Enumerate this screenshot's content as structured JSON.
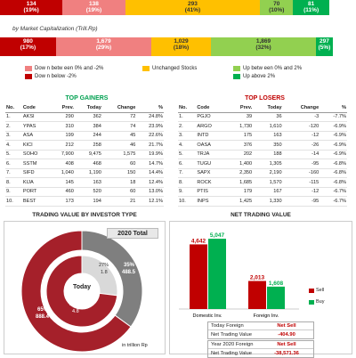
{
  "top_bar": [
    {
      "value": "134",
      "pct": "(19%)",
      "color": "#c00000"
    },
    {
      "value": "138",
      "pct": "(19%)",
      "color": "#f08080"
    },
    {
      "value": "293",
      "pct": "(41%)",
      "color": "#ffc000"
    },
    {
      "value": "70",
      "pct": "(10%)",
      "color": "#92d050"
    },
    {
      "value": "81",
      "pct": "(11%)",
      "color": "#00b050"
    }
  ],
  "mcap_label": "by Market Capitalization (Trill.Rp)",
  "mcap_bar": [
    {
      "value": "980",
      "pct": "(17%)",
      "color": "#c00000"
    },
    {
      "value": "1,679",
      "pct": "(29%)",
      "color": "#f08080"
    },
    {
      "value": "1,029",
      "pct": "(18%)",
      "color": "#ffc000"
    },
    {
      "value": "1,869",
      "pct": "(32%)",
      "color": "#92d050"
    },
    {
      "value": "297",
      "pct": "(5%)",
      "color": "#00b050"
    }
  ],
  "legend": [
    {
      "label": "Dow n betw een 0% and -2%",
      "color": "#f08080"
    },
    {
      "label": "Unchanged Stocks",
      "color": "#ffc000"
    },
    {
      "label": "Up betw een 0% and 2%",
      "color": "#92d050"
    },
    {
      "label": "Dow n below -2%",
      "color": "#c00000"
    },
    {
      "label": "Up above 2%",
      "color": "#00b050"
    }
  ],
  "gainers": {
    "title": "TOP GAINERS",
    "headers": [
      "No.",
      "Code",
      "Prev.",
      "Today",
      "Change",
      "%"
    ],
    "rows": [
      [
        "1.",
        "AKSI",
        "290",
        "362",
        "72",
        "24.8%"
      ],
      [
        "2.",
        "YPAS",
        "310",
        "384",
        "74",
        "23.9%"
      ],
      [
        "3.",
        "ASA",
        "199",
        "244",
        "45",
        "22.6%"
      ],
      [
        "4.",
        "KICI",
        "212",
        "258",
        "46",
        "21.7%"
      ],
      [
        "5.",
        "SOHO",
        "7,900",
        "9,475",
        "1,575",
        "19.9%"
      ],
      [
        "6.",
        "SSTM",
        "408",
        "468",
        "60",
        "14.7%"
      ],
      [
        "7.",
        "SIFD",
        "1,040",
        "1,190",
        "150",
        "14.4%"
      ],
      [
        "8.",
        "KIJA",
        "145",
        "163",
        "18",
        "12.4%"
      ],
      [
        "9.",
        "PORT",
        "460",
        "520",
        "60",
        "13.0%"
      ],
      [
        "10.",
        "BEST",
        "173",
        "194",
        "21",
        "12.1%"
      ]
    ]
  },
  "losers": {
    "title": "TOP LOSERS",
    "headers": [
      "No.",
      "Code",
      "Prev.",
      "Today",
      "Change",
      "%"
    ],
    "rows": [
      [
        "1.",
        "PGJO",
        "39",
        "36",
        "-3",
        "-7.7%"
      ],
      [
        "2.",
        "ARGO",
        "1,730",
        "1,610",
        "-120",
        "-6.9%"
      ],
      [
        "3.",
        "INTD",
        "175",
        "163",
        "-12",
        "-6.9%"
      ],
      [
        "4.",
        "OASA",
        "376",
        "350",
        "-26",
        "-6.9%"
      ],
      [
        "5.",
        "TRJA",
        "202",
        "188",
        "-14",
        "-6.9%"
      ],
      [
        "6.",
        "TUGU",
        "1,400",
        "1,305",
        "-95",
        "-6.8%"
      ],
      [
        "7.",
        "SAPX",
        "2,350",
        "2,190",
        "-160",
        "-6.8%"
      ],
      [
        "8.",
        "ROCK",
        "1,685",
        "1,570",
        "-115",
        "-6.8%"
      ],
      [
        "9.",
        "PTIS",
        "179",
        "167",
        "-12",
        "-6.7%"
      ],
      [
        "10.",
        "INPS",
        "1,425",
        "1,330",
        "-95",
        "-6.7%"
      ]
    ]
  },
  "investor_panel": {
    "title": "TRADING VALUE BY INVESTOR TYPE",
    "badge": "2020 Total",
    "center": "Today",
    "outer_pct": "35%",
    "outer_val": "488.5",
    "outer_main_pct": "65%",
    "outer_main_val": "888.4",
    "inner_pct": "27%",
    "inner_val": "1.8",
    "inner_main_pct": "73 %",
    "inner_main_val": "4.8",
    "unit": "in trillion Rp"
  },
  "net_panel": {
    "title": "NET TRADING VALUE",
    "unit_note": "",
    "legend": [
      {
        "label": "Sell",
        "color": "#c00000"
      },
      {
        "label": "Buy",
        "color": "#00b050"
      }
    ],
    "today_rows": [
      {
        "k": "Today Foreign",
        "v": "Net Sell"
      },
      {
        "k": "Net Trading Value",
        "v": "-404.90"
      }
    ],
    "year_rows": [
      {
        "k": "Year 2020 Foreign",
        "v": "Net Sell"
      },
      {
        "k": "Net Trading Value",
        "v": "-38,571.36"
      }
    ]
  },
  "chart_data": {
    "type": "bar",
    "title": "NET TRADING VALUE",
    "categories": [
      "Domestic Inv.",
      "Foreign Inv."
    ],
    "series": [
      {
        "name": "Sell",
        "values": [
          4642,
          2013
        ],
        "labels": [
          "4,642",
          "2,013"
        ]
      },
      {
        "name": "Buy",
        "values": [
          5047,
          1608
        ],
        "labels": [
          "5,047",
          "1,608"
        ]
      }
    ],
    "ylim": [
      0,
      5500
    ],
    "colors": [
      "#c00000",
      "#00b050"
    ]
  }
}
